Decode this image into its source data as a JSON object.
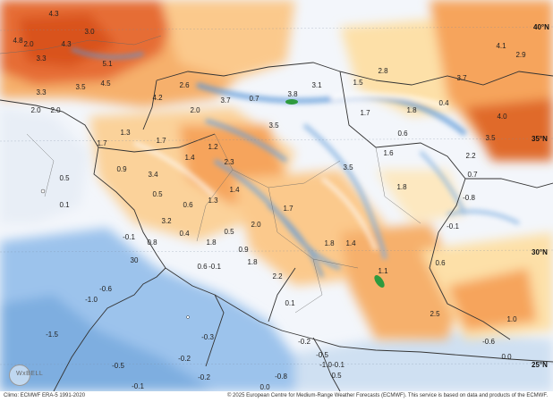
{
  "map": {
    "lat_labels": [
      {
        "text": "40°N"
      },
      {
        "text": "35°N"
      },
      {
        "text": "30°N"
      },
      {
        "text": "25°N"
      }
    ],
    "anomaly_labels": [
      "4.3",
      "3.3",
      "4.8",
      "2.0",
      "3.0",
      "4.3",
      "5.1",
      "3.3",
      "4.5",
      "3.5",
      "2.0",
      "2.0",
      "4.2",
      "2.6",
      "3.7",
      "0.7",
      "3.8",
      "3.1",
      "2.8",
      "3.7",
      "4.1",
      "2.9",
      "1.5",
      "1.7",
      "1.8",
      "0.4",
      "2.0",
      "3.5",
      "4.0",
      "3.5",
      "1.3",
      "1.7",
      "1.7",
      "1.2",
      "0.6",
      "1.6",
      "2.2",
      "0.9",
      "1.4",
      "2.3",
      "3.5",
      "0.7",
      "0.5",
      "0.1",
      "3.4",
      "1.8",
      "-0.8",
      "0.5",
      "1.4",
      "1.3",
      "1.7",
      "3.2",
      "0.6",
      "0.5",
      "2.0",
      "0.9",
      "1.8",
      "1.4",
      "-0.1",
      "-0.1",
      "0.4",
      "1.8",
      "0.8",
      "0.6",
      "1.8",
      "1.1",
      "0.6",
      "30",
      "2.2",
      "-0.1",
      "-0.6",
      "-1.0",
      "0.1",
      "2.5",
      "1.0",
      "-1.5",
      "-0.3",
      "-0.2",
      "-0.6",
      "-0.5",
      "-0.2",
      "0.0",
      "-1.0",
      "-0.8",
      "-0.5",
      "-0.2",
      "-0.1",
      "-0.1",
      "0.0",
      "0.5"
    ]
  },
  "footer": {
    "left_text": "Climo: ECMWF ERA-5 1991-2020",
    "right_text": "© 2025 European Centre for Medium-Range Weather Forecasts (ECMWF). This service is based on data and products of the ECMWF."
  },
  "watermark": {
    "text": "WxBELL"
  },
  "colors": {
    "sea": "#cfe0f2",
    "sea_deep": "#8fb9e6",
    "warm_light": "#fde0a8",
    "warm": "#f6a45c",
    "hot": "#d9531e",
    "cool": "#7eaee0",
    "border": "#555555",
    "coast": "#333333"
  }
}
